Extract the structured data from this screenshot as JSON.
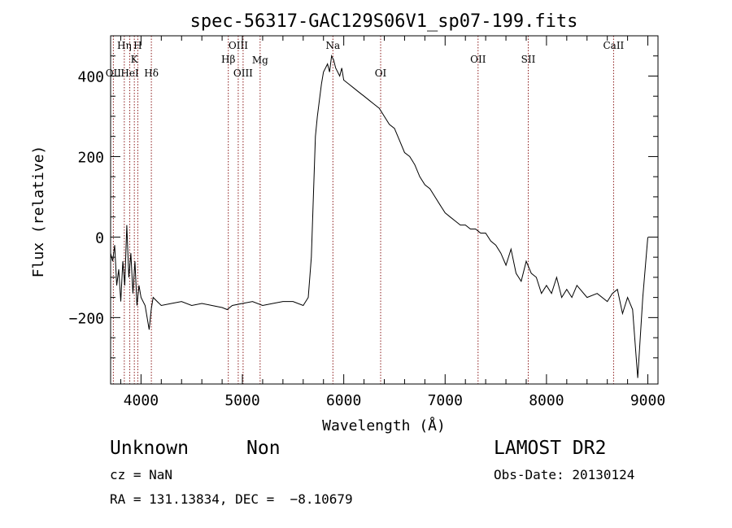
{
  "chart_data": {
    "type": "line",
    "title": "spec-56317-GAC129S06V1_sp07-199.fits",
    "xlabel": "Wavelength (Å)",
    "ylabel": "Flux (relative)",
    "xlim": [
      3700,
      9100
    ],
    "ylim": [
      -365,
      500
    ],
    "xticks": [
      4000,
      5000,
      6000,
      7000,
      8000,
      9000
    ],
    "yticks": [
      -200,
      0,
      200,
      400
    ],
    "xtick_labels": [
      "4000",
      "5000",
      "6000",
      "7000",
      "8000",
      "9000"
    ],
    "ytick_labels": [
      "−200",
      "0",
      "200",
      "400"
    ],
    "series": [
      {
        "x": [
          3700,
          3720,
          3740,
          3760,
          3780,
          3800,
          3820,
          3840,
          3860,
          3880,
          3900,
          3920,
          3940,
          3960,
          3980,
          4000,
          4040,
          4080,
          4100,
          4120,
          4160,
          4200,
          4300,
          4400,
          4500,
          4600,
          4700,
          4800,
          4850,
          4900,
          5000,
          5100,
          5200,
          5300,
          5400,
          5500,
          5600,
          5650,
          5680,
          5700,
          5720,
          5740,
          5760,
          5780,
          5800,
          5820,
          5840,
          5860,
          5880,
          5900,
          5920,
          5940,
          5960,
          5980,
          6000,
          6050,
          6100,
          6150,
          6200,
          6250,
          6300,
          6350,
          6400,
          6450,
          6500,
          6550,
          6600,
          6650,
          6700,
          6750,
          6800,
          6850,
          6900,
          6950,
          7000,
          7050,
          7100,
          7150,
          7200,
          7250,
          7300,
          7350,
          7400,
          7450,
          7500,
          7550,
          7600,
          7650,
          7700,
          7750,
          7800,
          7850,
          7900,
          7950,
          8000,
          8050,
          8100,
          8150,
          8200,
          8250,
          8300,
          8400,
          8500,
          8600,
          8650,
          8700,
          8750,
          8800,
          8850,
          8900,
          8950,
          9000
        ],
        "y": [
          -40,
          -60,
          -20,
          -120,
          -80,
          -160,
          -60,
          -120,
          30,
          -100,
          -40,
          -140,
          -60,
          -170,
          -120,
          -150,
          -170,
          -230,
          -180,
          -150,
          -160,
          -170,
          -165,
          -160,
          -170,
          -165,
          -170,
          -175,
          -180,
          -170,
          -165,
          -160,
          -170,
          -165,
          -160,
          -160,
          -170,
          -150,
          -50,
          100,
          250,
          300,
          340,
          380,
          410,
          420,
          430,
          410,
          450,
          440,
          420,
          410,
          400,
          420,
          390,
          380,
          370,
          360,
          350,
          340,
          330,
          320,
          300,
          280,
          270,
          240,
          210,
          200,
          180,
          150,
          130,
          120,
          100,
          80,
          60,
          50,
          40,
          30,
          30,
          20,
          20,
          10,
          10,
          -10,
          -20,
          -40,
          -70,
          -30,
          -90,
          -110,
          -60,
          -90,
          -100,
          -140,
          -120,
          -140,
          -100,
          -150,
          -130,
          -150,
          -120,
          -150,
          -140,
          -160,
          -140,
          -130,
          -190,
          -150,
          -180,
          -350,
          -150,
          0
        ]
      }
    ],
    "line_markers": [
      {
        "label": "OII",
        "wavelength": 3727
      },
      {
        "label": "Hη",
        "wavelength": 3835
      },
      {
        "label": "H",
        "wavelength": 3968
      },
      {
        "label": "K",
        "wavelength": 3934
      },
      {
        "label": "HeI",
        "wavelength": 3889
      },
      {
        "label": "Hδ",
        "wavelength": 4102
      },
      {
        "label": "OIII",
        "wavelength": 4959
      },
      {
        "label": "Hβ",
        "wavelength": 4861
      },
      {
        "label": "OIII",
        "wavelength": 5007
      },
      {
        "label": "Mg",
        "wavelength": 5175
      },
      {
        "label": "Na",
        "wavelength": 5893
      },
      {
        "label": "OI",
        "wavelength": 6364
      },
      {
        "label": "OII",
        "wavelength": 7325
      },
      {
        "label": "SII",
        "wavelength": 7820
      },
      {
        "label": "CaII",
        "wavelength": 8662
      }
    ],
    "grid": false,
    "legend": "none",
    "colors": {
      "spectrum": "#000000",
      "markers": "#8b1a1a"
    }
  },
  "info": {
    "class": "Unknown",
    "subclass": "Non",
    "survey": "LAMOST DR2",
    "cz": "cz = NaN",
    "obs_date": "Obs-Date: 20130124",
    "radec": "RA = 131.13834, DEC =  −8.10679"
  }
}
